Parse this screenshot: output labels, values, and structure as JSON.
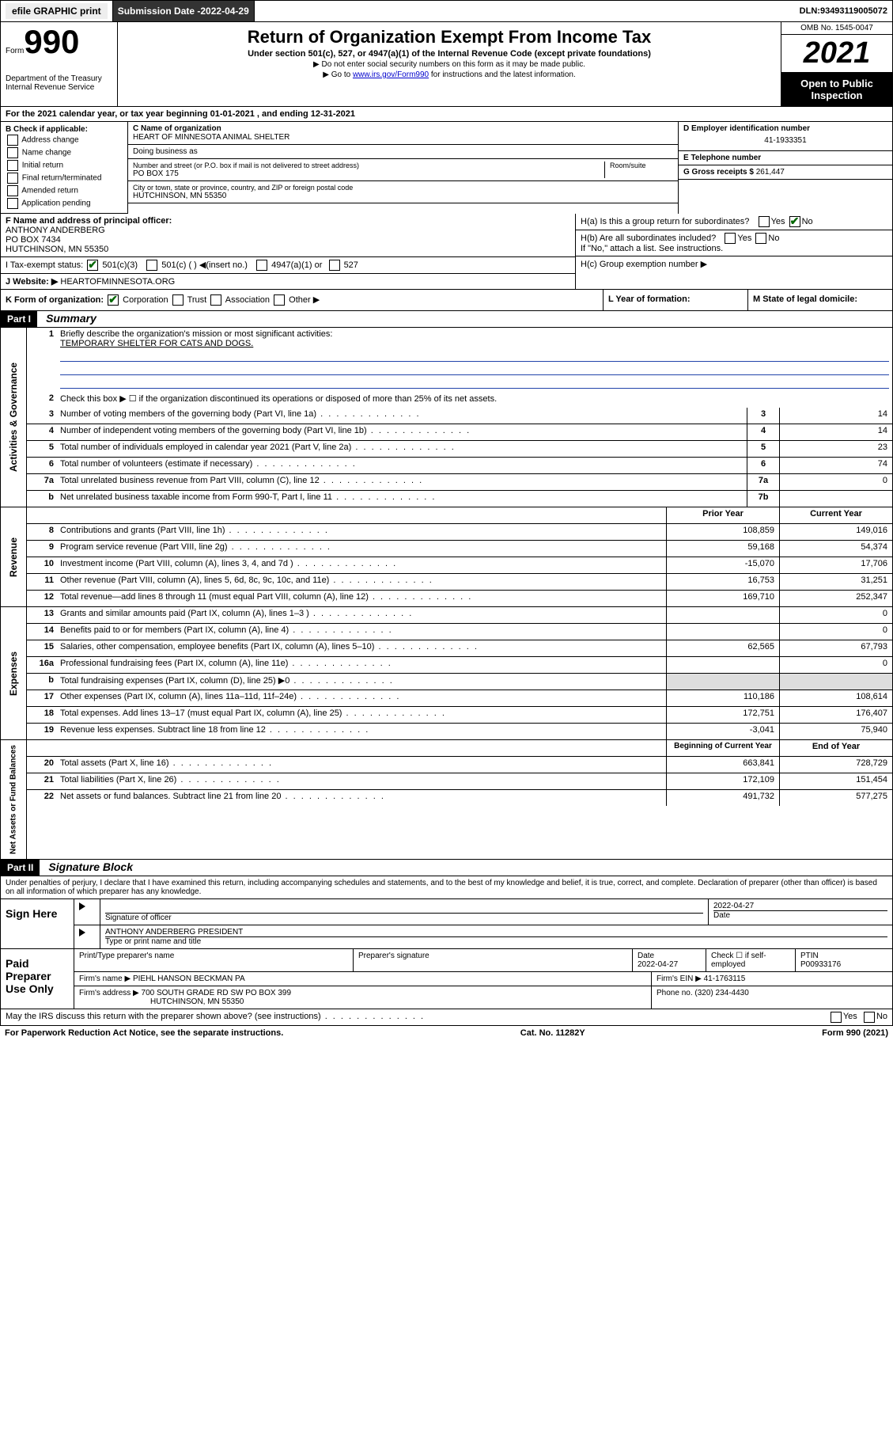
{
  "topbar": {
    "efile": "efile GRAPHIC print",
    "submission_label": "Submission Date - ",
    "submission_date": "2022-04-29",
    "dln_label": "DLN: ",
    "dln": "93493119005072"
  },
  "header": {
    "form_prefix": "Form",
    "form_number": "990",
    "dept": "Department of the Treasury",
    "irs": "Internal Revenue Service",
    "title": "Return of Organization Exempt From Income Tax",
    "subtitle": "Under section 501(c), 527, or 4947(a)(1) of the Internal Revenue Code (except private foundations)",
    "note1": "▶ Do not enter social security numbers on this form as it may be made public.",
    "note2_prefix": "▶ Go to ",
    "note2_link": "www.irs.gov/Form990",
    "note2_suffix": " for instructions and the latest information.",
    "omb": "OMB No. 1545-0047",
    "year": "2021",
    "inspection": "Open to Public Inspection"
  },
  "row_a": {
    "text": "For the 2021 calendar year, or tax year beginning 01-01-2021    , and ending 12-31-2021",
    "label": "A"
  },
  "section_b": {
    "label": "B Check if applicable:",
    "opts": [
      "Address change",
      "Name change",
      "Initial return",
      "Final return/terminated",
      "Amended return",
      "Application pending"
    ]
  },
  "section_c": {
    "name_label": "C Name of organization",
    "name": "HEART OF MINNESOTA ANIMAL SHELTER",
    "dba_label": "Doing business as",
    "street_label": "Number and street (or P.O. box if mail is not delivered to street address)",
    "room_label": "Room/suite",
    "street": "PO BOX 175",
    "city_label": "City or town, state or province, country, and ZIP or foreign postal code",
    "city": "HUTCHINSON, MN  55350"
  },
  "section_d": {
    "label": "D Employer identification number",
    "value": "41-1933351"
  },
  "section_e": {
    "label": "E Telephone number",
    "value": ""
  },
  "section_g": {
    "label": "G Gross receipts $",
    "value": "261,447"
  },
  "section_f": {
    "label": "F  Name and address of principal officer:",
    "name": "ANTHONY ANDERBERG",
    "addr1": "PO BOX 7434",
    "addr2": "HUTCHINSON, MN  55350"
  },
  "section_h": {
    "ha": "H(a)  Is this a group return for subordinates?",
    "hb": "H(b)  Are all subordinates included?",
    "hb_note": "If \"No,\" attach a list. See instructions.",
    "hc": "H(c)  Group exemption number ▶",
    "yes": "Yes",
    "no": "No"
  },
  "row_i": {
    "label": "I    Tax-exempt status:",
    "o1": "501(c)(3)",
    "o2": "501(c) (  ) ◀(insert no.)",
    "o3": "4947(a)(1) or",
    "o4": "527"
  },
  "row_j": {
    "label": "J    Website: ▶",
    "value": "HEARTOFMINNESOTA.ORG"
  },
  "row_k": {
    "label": "K Form of organization:",
    "o1": "Corporation",
    "o2": "Trust",
    "o3": "Association",
    "o4": "Other ▶"
  },
  "row_l": {
    "label": "L Year of formation:",
    "value": ""
  },
  "row_m": {
    "label": "M State of legal domicile:",
    "value": ""
  },
  "part1": {
    "header": "Part I",
    "title": "Summary"
  },
  "summary": {
    "side1": "Activities & Governance",
    "side2": "Revenue",
    "side3": "Expenses",
    "side4": "Net Assets or Fund Balances",
    "q1": "Briefly describe the organization's mission or most significant activities:",
    "q1_ans": "TEMPORARY SHELTER FOR CATS AND DOGS.",
    "q2": "Check this box ▶ ☐  if the organization discontinued its operations or disposed of more than 25% of its net assets.",
    "rows_single": [
      {
        "n": "3",
        "d": "Number of voting members of the governing body (Part VI, line 1a)",
        "box": "3",
        "v": "14"
      },
      {
        "n": "4",
        "d": "Number of independent voting members of the governing body (Part VI, line 1b)",
        "box": "4",
        "v": "14"
      },
      {
        "n": "5",
        "d": "Total number of individuals employed in calendar year 2021 (Part V, line 2a)",
        "box": "5",
        "v": "23"
      },
      {
        "n": "6",
        "d": "Total number of volunteers (estimate if necessary)",
        "box": "6",
        "v": "74"
      },
      {
        "n": "7a",
        "d": "Total unrelated business revenue from Part VIII, column (C), line 12",
        "box": "7a",
        "v": "0"
      },
      {
        "n": "b",
        "d": "Net unrelated business taxable income from Form 990-T, Part I, line 11",
        "box": "7b",
        "v": ""
      }
    ],
    "col_prior": "Prior Year",
    "col_current": "Current Year",
    "rows_double": [
      {
        "n": "8",
        "d": "Contributions and grants (Part VIII, line 1h)",
        "p": "108,859",
        "c": "149,016"
      },
      {
        "n": "9",
        "d": "Program service revenue (Part VIII, line 2g)",
        "p": "59,168",
        "c": "54,374"
      },
      {
        "n": "10",
        "d": "Investment income (Part VIII, column (A), lines 3, 4, and 7d )",
        "p": "-15,070",
        "c": "17,706"
      },
      {
        "n": "11",
        "d": "Other revenue (Part VIII, column (A), lines 5, 6d, 8c, 9c, 10c, and 11e)",
        "p": "16,753",
        "c": "31,251"
      },
      {
        "n": "12",
        "d": "Total revenue—add lines 8 through 11 (must equal Part VIII, column (A), line 12)",
        "p": "169,710",
        "c": "252,347"
      }
    ],
    "rows_exp": [
      {
        "n": "13",
        "d": "Grants and similar amounts paid (Part IX, column (A), lines 1–3 )",
        "p": "",
        "c": "0"
      },
      {
        "n": "14",
        "d": "Benefits paid to or for members (Part IX, column (A), line 4)",
        "p": "",
        "c": "0"
      },
      {
        "n": "15",
        "d": "Salaries, other compensation, employee benefits (Part IX, column (A), lines 5–10)",
        "p": "62,565",
        "c": "67,793"
      },
      {
        "n": "16a",
        "d": "Professional fundraising fees (Part IX, column (A), line 11e)",
        "p": "",
        "c": "0"
      },
      {
        "n": "b",
        "d": "Total fundraising expenses (Part IX, column (D), line 25) ▶0",
        "p": "shade",
        "c": "shade"
      },
      {
        "n": "17",
        "d": "Other expenses (Part IX, column (A), lines 11a–11d, 11f–24e)",
        "p": "110,186",
        "c": "108,614"
      },
      {
        "n": "18",
        "d": "Total expenses. Add lines 13–17 (must equal Part IX, column (A), line 25)",
        "p": "172,751",
        "c": "176,407"
      },
      {
        "n": "19",
        "d": "Revenue less expenses. Subtract line 18 from line 12",
        "p": "-3,041",
        "c": "75,940"
      }
    ],
    "col_begin": "Beginning of Current Year",
    "col_end": "End of Year",
    "rows_net": [
      {
        "n": "20",
        "d": "Total assets (Part X, line 16)",
        "p": "663,841",
        "c": "728,729"
      },
      {
        "n": "21",
        "d": "Total liabilities (Part X, line 26)",
        "p": "172,109",
        "c": "151,454"
      },
      {
        "n": "22",
        "d": "Net assets or fund balances. Subtract line 21 from line 20",
        "p": "491,732",
        "c": "577,275"
      }
    ]
  },
  "part2": {
    "header": "Part II",
    "title": "Signature Block",
    "penalty": "Under penalties of perjury, I declare that I have examined this return, including accompanying schedules and statements, and to the best of my knowledge and belief, it is true, correct, and complete. Declaration of preparer (other than officer) is based on all information of which preparer has any knowledge."
  },
  "sign": {
    "here": "Sign Here",
    "sig_officer": "Signature of officer",
    "date": "Date",
    "date_val": "2022-04-27",
    "officer_name": "ANTHONY ANDERBERG  PRESIDENT",
    "type_name": "Type or print name and title"
  },
  "paid": {
    "title": "Paid Preparer Use Only",
    "c1": "Print/Type preparer's name",
    "c2": "Preparer's signature",
    "c3": "Date",
    "c3v": "2022-04-27",
    "c4": "Check ☐ if self-employed",
    "c5": "PTIN",
    "c5v": "P00933176",
    "firm_label": "Firm's name      ▶",
    "firm": "PIEHL HANSON BECKMAN PA",
    "ein_label": "Firm's EIN ▶",
    "ein": "41-1763115",
    "addr_label": "Firm's address ▶",
    "addr": "700 SOUTH GRADE RD SW PO BOX 399",
    "addr2": "HUTCHINSON, MN  55350",
    "phone_label": "Phone no.",
    "phone": "(320) 234-4430"
  },
  "may_irs": "May the IRS discuss this return with the preparer shown above? (see instructions)",
  "footer": {
    "left": "For Paperwork Reduction Act Notice, see the separate instructions.",
    "mid": "Cat. No. 11282Y",
    "right": "Form 990 (2021)"
  }
}
